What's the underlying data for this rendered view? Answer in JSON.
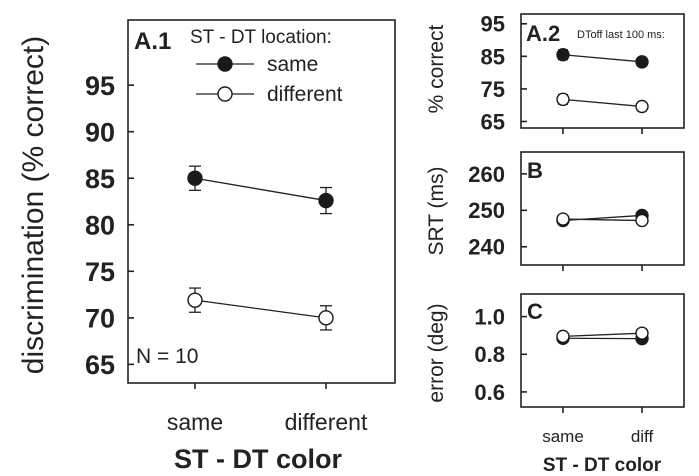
{
  "chart_data": [
    {
      "id": "A1",
      "type": "line",
      "panel_label": "A.1",
      "legend_title": "ST - DT location:",
      "categories": [
        "same",
        "different"
      ],
      "xlabel": "ST - DT color",
      "ylabel": "discrimination (% correct)",
      "ylim": [
        63,
        102
      ],
      "yticks": [
        65,
        70,
        75,
        80,
        85,
        90,
        95
      ],
      "annotation": "N = 10",
      "series": [
        {
          "name": "same",
          "marker": "filled",
          "values": [
            85.0,
            82.6
          ],
          "errors": [
            1.3,
            1.4
          ]
        },
        {
          "name": "different",
          "marker": "open",
          "values": [
            71.9,
            70.0
          ],
          "errors": [
            1.3,
            1.3
          ]
        }
      ]
    },
    {
      "id": "A2",
      "type": "line",
      "panel_label": "A.2",
      "note": "DToff last 100 ms:",
      "categories": [
        "same",
        "diff"
      ],
      "ylabel": "% correct",
      "ylim": [
        63,
        98
      ],
      "yticks": [
        65,
        75,
        85,
        95
      ],
      "series": [
        {
          "marker": "filled",
          "values": [
            85.5,
            83.3
          ],
          "errors": [
            1.5,
            1.3
          ]
        },
        {
          "marker": "open",
          "values": [
            71.8,
            69.6
          ],
          "errors": [
            1.5,
            1.3
          ]
        }
      ]
    },
    {
      "id": "B",
      "type": "line",
      "panel_label": "B",
      "categories": [
        "same",
        "diff"
      ],
      "ylabel": "SRT (ms)",
      "ylim": [
        235,
        266
      ],
      "yticks": [
        240,
        250,
        260
      ],
      "series": [
        {
          "marker": "filled",
          "values": [
            247.2,
            248.6
          ],
          "errors": [
            0.6,
            0.6
          ]
        },
        {
          "marker": "open",
          "values": [
            247.6,
            247.2
          ],
          "errors": [
            0.6,
            0.6
          ]
        }
      ]
    },
    {
      "id": "C",
      "type": "line",
      "panel_label": "C",
      "categories": [
        "same",
        "diff"
      ],
      "xlabel": "ST - DT color",
      "ylabel": "error (deg)",
      "ylim": [
        0.52,
        1.12
      ],
      "yticks": [
        0.6,
        0.8,
        1.0
      ],
      "ytick_labels": [
        "0.6",
        "0.8",
        "1.0"
      ],
      "series": [
        {
          "marker": "filled",
          "values": [
            0.885,
            0.883
          ],
          "errors": [
            0.01,
            0.01
          ]
        },
        {
          "marker": "open",
          "values": [
            0.895,
            0.912
          ],
          "errors": [
            0.01,
            0.01
          ]
        }
      ]
    }
  ]
}
